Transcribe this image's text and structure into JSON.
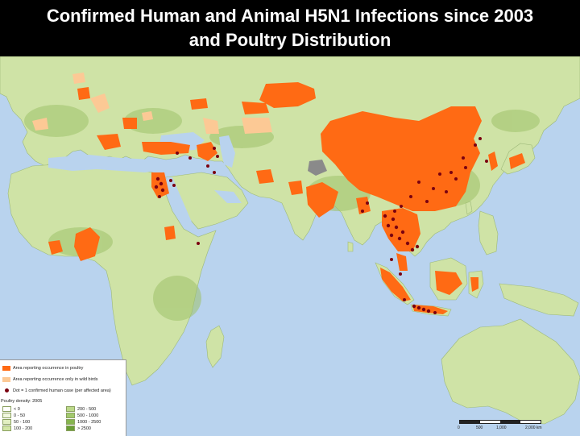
{
  "title": {
    "line1": "Confirmed Human and Animal H5N1 Infections since 2003",
    "line2": "and Poultry Distribution"
  },
  "legend": {
    "area_poultry": "Area reporting occurrence in poultry",
    "area_wild_birds": "Area reporting occurrence only in wild birds",
    "human_case": "Dot = 1 confirmed human case (per affected area)",
    "density_title": "Poultry density: 2005",
    "density_classes": [
      "< 0",
      "0 - 50",
      "50 - 100",
      "100 - 200",
      "200 - 500",
      "500 - 1000",
      "1000 - 2500",
      "> 2500"
    ]
  },
  "scalebar": {
    "labels": [
      "0",
      "500",
      "1,000",
      "2,000 km"
    ]
  },
  "colors": {
    "ocean": "#b9d3ee",
    "land": "#cfe3a6",
    "poultry_area": "#ff6a14",
    "wild_bird_area": "#fcc995",
    "human_case": "#7a0010",
    "excluded_area": "#8a8a8a"
  }
}
